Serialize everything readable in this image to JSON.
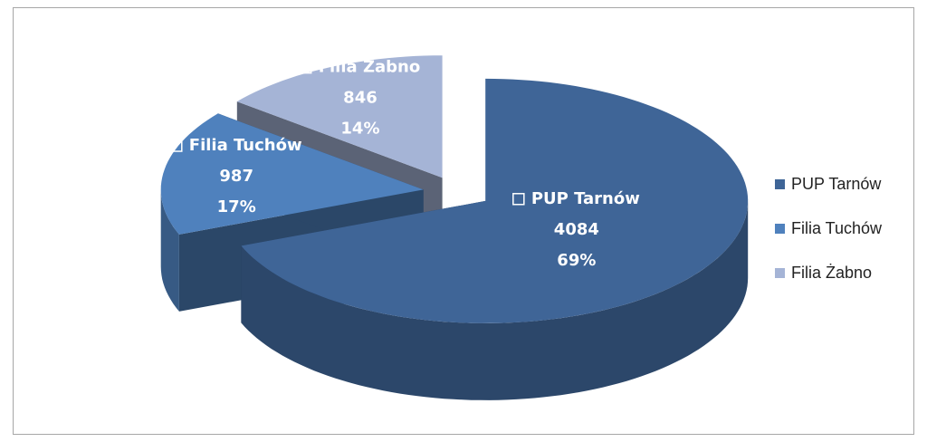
{
  "chart_data": {
    "type": "pie",
    "categories": [
      "PUP Tarnów",
      "Filia Tuchów",
      "Filia Żabno"
    ],
    "values": [
      4084,
      987,
      846
    ],
    "percent_labels": [
      "69%",
      "17%",
      "14%"
    ],
    "colors": [
      "#3f6597",
      "#4f81bd",
      "#a5b4d6"
    ],
    "legend": "right"
  }
}
